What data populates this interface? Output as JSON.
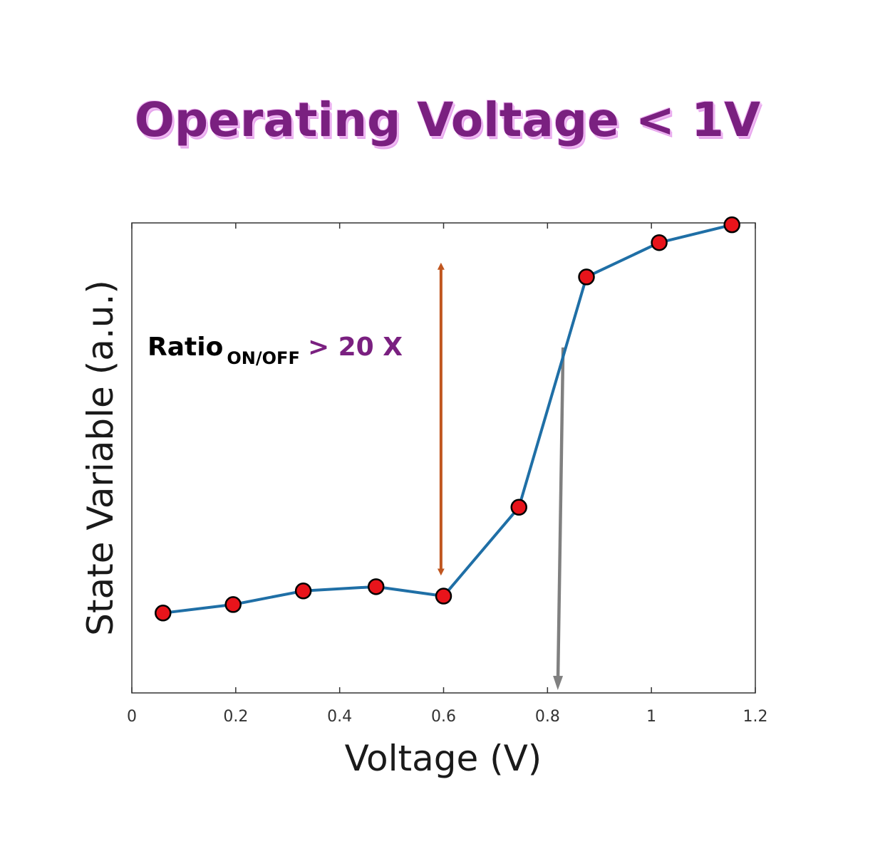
{
  "title": "Operating Voltage < 1V",
  "chart_data": {
    "type": "line",
    "xlabel": "Voltage (V)",
    "ylabel": "State Variable (a.u.)",
    "xlim": [
      0,
      1.2
    ],
    "ylim": [
      0,
      1
    ],
    "x_ticks": [
      "0",
      "0.2",
      "0.4",
      "0.6",
      "0.8",
      "1",
      "1.2"
    ],
    "x_tick_values": [
      0,
      0.2,
      0.4,
      0.6,
      0.8,
      1.0,
      1.2
    ],
    "y_ticks": [],
    "grid": false,
    "series": [
      {
        "x": [
          0.06,
          0.195,
          0.33,
          0.47,
          0.6,
          0.745,
          0.875,
          1.015,
          1.155
        ],
        "y": [
          0.17,
          0.188,
          0.217,
          0.226,
          0.206,
          0.395,
          0.885,
          0.958,
          0.996
        ]
      }
    ],
    "colors": {
      "line": "#1f6fa6",
      "marker": "#e8141b",
      "marker_edge": "#000000",
      "ratio_arrow": "#c0561f",
      "voltage_arrow": "#808080",
      "annotation_value": "#7a2080"
    },
    "annotations": {
      "ratio_label": "Ratio",
      "ratio_subscript": "ON/OFF",
      "ratio_value": "> 20 X",
      "ratio_arrow": {
        "x": 0.595,
        "y_from": 0.245,
        "y_to": 0.92
      },
      "voltage_arrow": {
        "x_from": 0.83,
        "y_from": 0.735,
        "x_to": 0.82,
        "y_to": 0.0
      }
    }
  }
}
